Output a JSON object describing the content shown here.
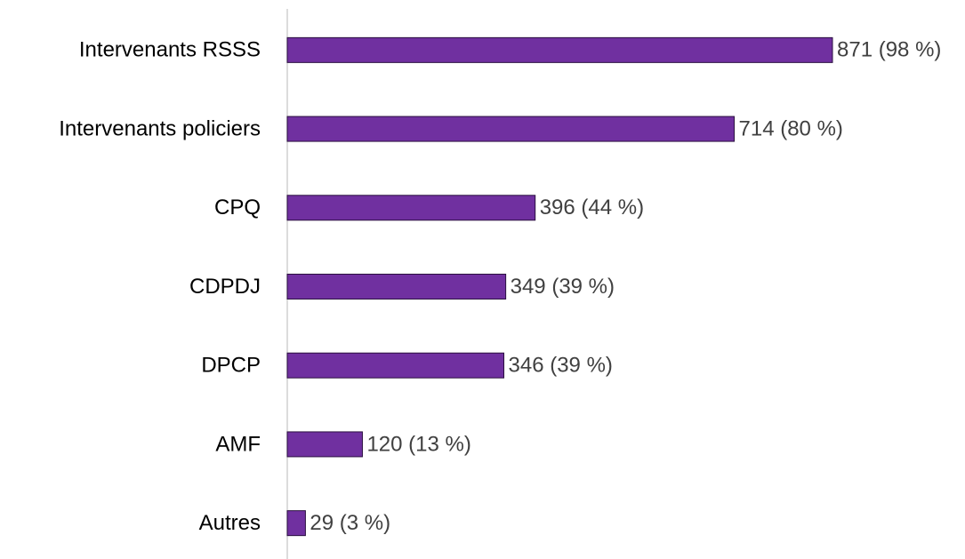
{
  "chart_data": {
    "type": "bar",
    "orientation": "horizontal",
    "categories": [
      "Intervenants RSSS",
      "Intervenants policiers",
      "CPQ",
      "CDPDJ",
      "DPCP",
      "AMF",
      "Autres"
    ],
    "values": [
      871,
      714,
      396,
      349,
      346,
      120,
      29
    ],
    "value_labels": [
      "871 (98 %)",
      "714 (80 %)",
      "396 (44 %)",
      "349 (39 %)",
      "346 (39 %)",
      "120 (13 %)",
      "29 (3 %)"
    ],
    "color": "#7030a0"
  }
}
